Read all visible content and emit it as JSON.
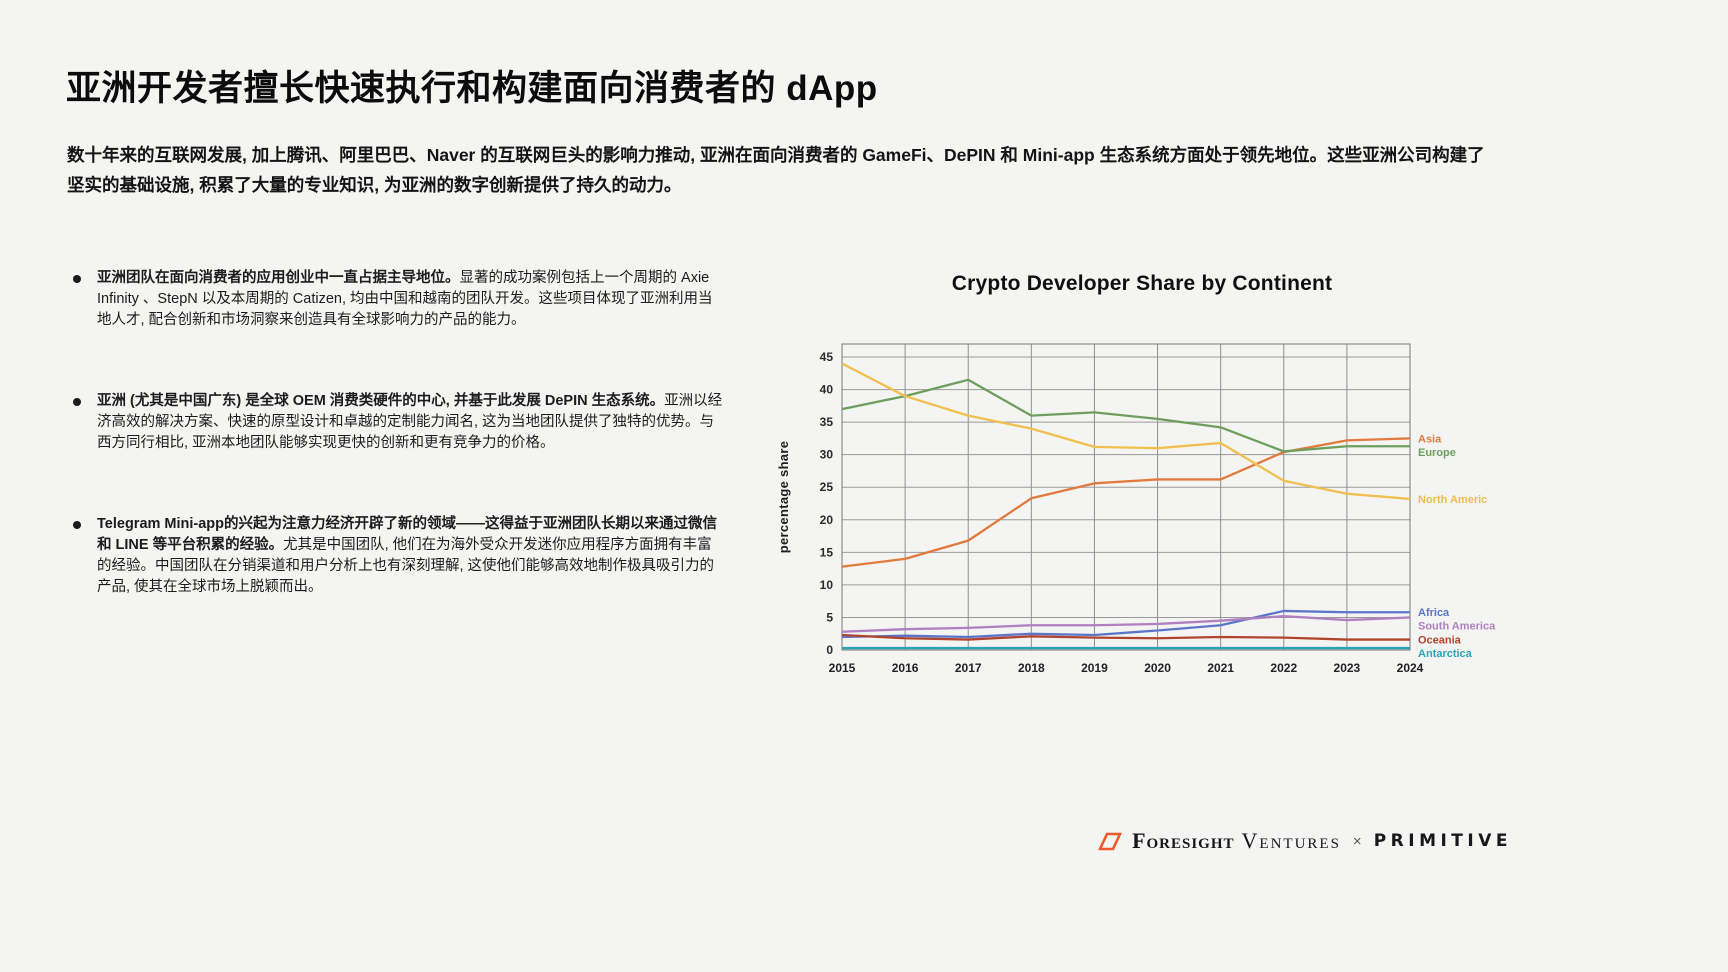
{
  "title": "亚洲开发者擅长快速执行和构建面向消费者的 dApp",
  "intro": "数十年来的互联网发展, 加上腾讯、阿里巴巴、Naver 的互联网巨头的影响力推动, 亚洲在面向消费者的 GameFi、DePIN 和 Mini-app 生态系统方面处于领先地位。这些亚洲公司构建了坚实的基础设施, 积累了大量的专业知识, 为亚洲的数字创新提供了持久的动力。",
  "bullets": [
    {
      "lead": "亚洲团队在面向消费者的应用创业中一直占据主导地位。",
      "body": "显著的成功案例包括上一个周期的 Axie Infinity 、StepN 以及本周期的 Catizen, 均由中国和越南的团队开发。这些项目体现了亚洲利用当地人才, 配合创新和市场洞察来创造具有全球影响力的产品的能力。"
    },
    {
      "lead": "亚洲 (尤其是中国广东) 是全球 OEM 消费类硬件的中心, 并基于此发展 DePIN 生态系统。",
      "body": "亚洲以经济高效的解决方案、快速的原型设计和卓越的定制能力闻名, 这为当地团队提供了独特的优势。与西方同行相比, 亚洲本地团队能够实现更快的创新和更有竞争力的价格。"
    },
    {
      "lead": "Telegram Mini-app的兴起为注意力经济开辟了新的领域——这得益于亚洲团队长期以来通过微信和 LINE 等平台积累的经验。",
      "body": "尤其是中国团队, 他们在为海外受众开发迷你应用程序方面拥有丰富的经验。中国团队在分销渠道和用户分析上也有深刻理解, 这使他们能够高效地制作极具吸引力的产品, 使其在全球市场上脱颖而出。"
    }
  ],
  "chart_data": {
    "type": "line",
    "title": "Crypto Developer Share by Continent",
    "xlabel": "",
    "ylabel": "percentage share",
    "x": [
      2015,
      2016,
      2017,
      2018,
      2019,
      2020,
      2021,
      2022,
      2023,
      2024
    ],
    "ylim": [
      0,
      45
    ],
    "ytick_step": 5,
    "grid": true,
    "legend_position": "right-of-line-ends",
    "series": [
      {
        "name": "Asia",
        "label": "Asia",
        "color": "#e2793d",
        "values": [
          12.8,
          14.0,
          16.8,
          23.3,
          25.6,
          26.2,
          26.2,
          30.4,
          32.2,
          32.5
        ]
      },
      {
        "name": "Europe",
        "label": "Europe",
        "color": "#6d9e5e",
        "values": [
          37.0,
          39.0,
          41.5,
          36.0,
          36.5,
          35.5,
          34.2,
          30.5,
          31.3,
          31.3
        ]
      },
      {
        "name": "North America",
        "label": "North Americ",
        "color": "#f0bf4e",
        "values": [
          44.0,
          39.0,
          36.0,
          34.0,
          31.2,
          31.0,
          31.8,
          26.0,
          24.0,
          23.2
        ]
      },
      {
        "name": "Africa",
        "label": "Africa",
        "color": "#5b75c9",
        "values": [
          2.0,
          2.2,
          2.0,
          2.5,
          2.3,
          3.0,
          3.8,
          6.0,
          5.8,
          5.8
        ]
      },
      {
        "name": "South America",
        "label": "South America",
        "color": "#b07fc0",
        "values": [
          2.8,
          3.2,
          3.4,
          3.8,
          3.8,
          4.0,
          4.5,
          5.2,
          4.6,
          5.0
        ]
      },
      {
        "name": "Oceania",
        "label": "Oceania",
        "color": "#b0452f",
        "values": [
          2.3,
          1.8,
          1.6,
          2.1,
          1.9,
          1.8,
          2.0,
          1.9,
          1.6,
          1.6
        ]
      },
      {
        "name": "Antarctica",
        "label": "Antarctica",
        "color": "#2ba3b4",
        "values": [
          0.3,
          0.3,
          0.3,
          0.3,
          0.3,
          0.3,
          0.3,
          0.3,
          0.3,
          0.3
        ]
      }
    ]
  },
  "footer": {
    "foresight_bold": "Foresight",
    "foresight_light": "Ventures",
    "separator": "×",
    "primitive": "PRIMITIVE"
  }
}
